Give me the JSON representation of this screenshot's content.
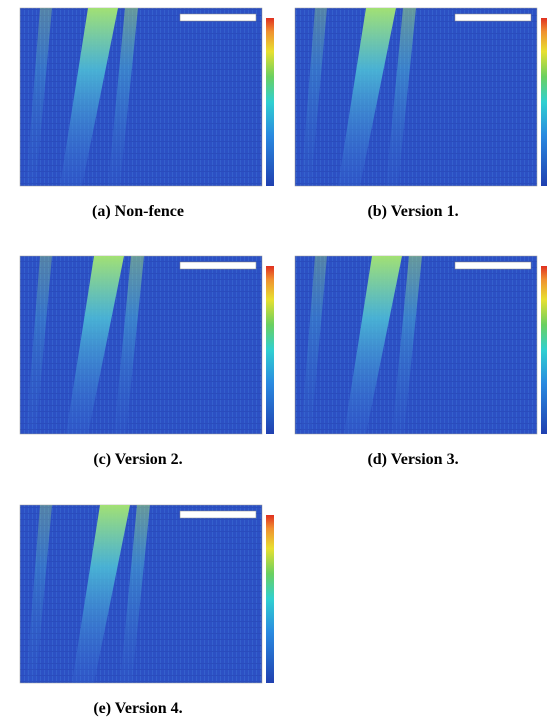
{
  "figures": [
    {
      "caption": "(a) Non-fence"
    },
    {
      "caption": "(b) Version 1."
    },
    {
      "caption": "(c) Version 2."
    },
    {
      "caption": "(d) Version 3."
    },
    {
      "caption": "(e) Version 4."
    }
  ]
}
